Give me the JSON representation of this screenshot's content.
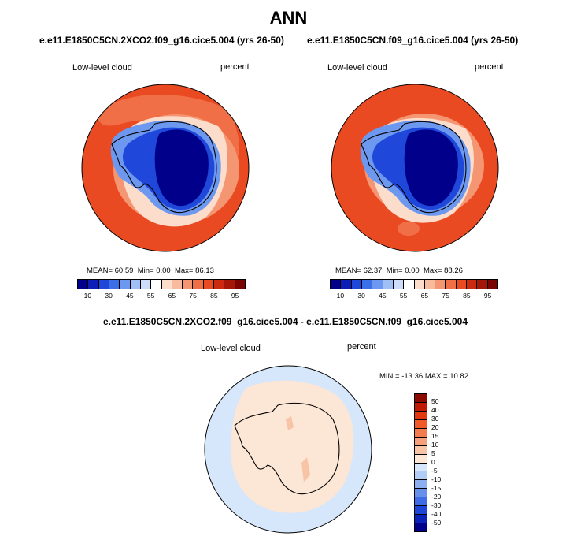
{
  "figure": {
    "title": "ANN"
  },
  "panels": [
    {
      "case": "e.e11.E1850C5CN.2XCO2.f09_g16.cice5.004 (yrs 26-50)",
      "variable": "Low-level cloud",
      "units": "percent",
      "mean_label": "MEAN=",
      "mean": "60.59",
      "min_label": "Min=",
      "min": "0.00",
      "max_label": "Max=",
      "max": "86.13"
    },
    {
      "case": "e.e11.E1850C5CN.f09_g16.cice5.004 (yrs 26-50)",
      "variable": "Low-level cloud",
      "units": "percent",
      "mean_label": "MEAN=",
      "mean": "62.37",
      "min_label": "Min=",
      "min": "0.00",
      "max_label": "Max=",
      "max": "88.26"
    }
  ],
  "diff_panel": {
    "case": "e.e11.E1850C5CN.2XCO2.f09_g16.cice5.004 - e.e11.E1850C5CN.f09_g16.cice5.004",
    "variable": "Low-level cloud",
    "units": "percent",
    "minmax": "MIN = -13.36 MAX =  10.82"
  },
  "colorbar_abs": {
    "ticks": [
      "10",
      "30",
      "45",
      "55",
      "65",
      "75",
      "85",
      "95"
    ],
    "colors": [
      "#00008a",
      "#0b1fb8",
      "#1f47d9",
      "#3b6fe8",
      "#6d98f0",
      "#a0bff5",
      "#cddcf8",
      "#ffffff",
      "#fcdccb",
      "#f9bb9e",
      "#f59672",
      "#f06f47",
      "#ea4a22",
      "#cc2a10",
      "#a51508",
      "#7a0402"
    ]
  },
  "colorbar_diff": {
    "ticks": [
      "50",
      "40",
      "30",
      "20",
      "15",
      "10",
      "5",
      "0",
      "-5",
      "-10",
      "-15",
      "-20",
      "-30",
      "-40",
      "-50"
    ],
    "colors": [
      "#8a0a00",
      "#c01a05",
      "#e2380f",
      "#f05a2a",
      "#f27c4e",
      "#f5a07a",
      "#f8c4a6",
      "#fce6d6",
      "#d6e6fb",
      "#b1ccf5",
      "#8cb0ef",
      "#6690ea",
      "#3f6ce5",
      "#1d45d8",
      "#0b22b8",
      "#00008a"
    ]
  },
  "map_colors": {
    "ocean_hi": "#ea4a22",
    "ocean_mid": "#f06f47",
    "ring": "#f59672",
    "coast_light": "#fcdccb",
    "ice_edge": "#6d98f0",
    "ice_mid": "#1f47d9",
    "ice_core": "#00008a",
    "diff_ocean": "#d6e6fb",
    "diff_ring": "#b1ccf5",
    "diff_land": "#fce6d6",
    "diff_warm": "#f8c4a6"
  }
}
